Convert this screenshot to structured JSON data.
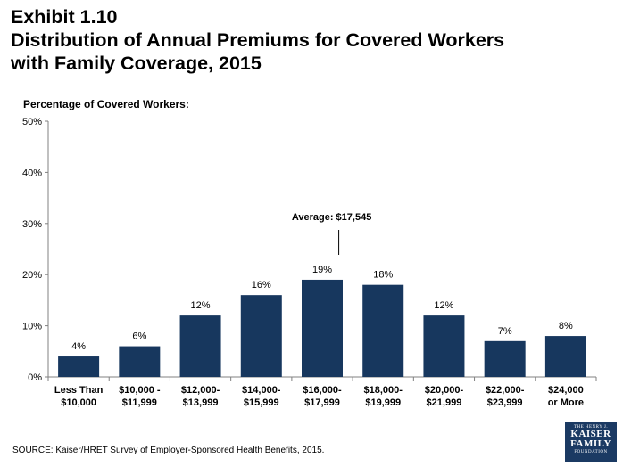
{
  "title": {
    "line1": "Exhibit 1.10",
    "line2": "Distribution of Annual Premiums for Covered Workers",
    "line3": "with Family Coverage, 2015"
  },
  "source": "SOURCE:  Kaiser/HRET Survey of Employer-Sponsored Health Benefits, 2015.",
  "logo": {
    "line1": "THE HENRY J.",
    "line2": "KAISER",
    "line3": "FAMILY",
    "line4": "FOUNDATION"
  },
  "colors": {
    "bar": "#17375e",
    "axis": "#808080"
  },
  "chart_data": {
    "type": "bar",
    "ylabel": "Percentage of Covered Workers:",
    "xlabel": "",
    "ylim": [
      0,
      50
    ],
    "yticks": [
      0,
      10,
      20,
      30,
      40,
      50
    ],
    "ytick_labels": [
      "0%",
      "10%",
      "20%",
      "30%",
      "40%",
      "50%"
    ],
    "grid": false,
    "categories": [
      [
        "Less Than",
        "$10,000"
      ],
      [
        "$10,000 -",
        "$11,999"
      ],
      [
        "$12,000-",
        "$13,999"
      ],
      [
        "$14,000-",
        "$15,999"
      ],
      [
        "$16,000-",
        "$17,999"
      ],
      [
        "$18,000-",
        "$19,999"
      ],
      [
        "$20,000-",
        "$21,999"
      ],
      [
        "$22,000-",
        "$23,999"
      ],
      [
        "$24,000",
        "or More"
      ]
    ],
    "values": [
      4,
      6,
      12,
      16,
      19,
      18,
      12,
      7,
      8
    ],
    "data_labels": [
      "4%",
      "6%",
      "12%",
      "16%",
      "19%",
      "18%",
      "12%",
      "7%",
      "8%"
    ],
    "annotation": {
      "text": "Average: $17,545",
      "value": 17545
    }
  }
}
